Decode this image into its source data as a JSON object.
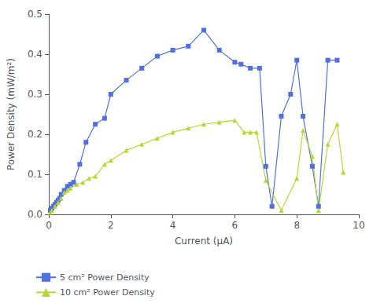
{
  "chart_data": {
    "type": "line",
    "xlabel": "Current (μA)",
    "ylabel": "Power Density (mW/m²)",
    "xlim": [
      0,
      10
    ],
    "ylim": [
      0,
      0.5
    ],
    "xticks": [
      0,
      2,
      4,
      6,
      8,
      10
    ],
    "yticks": [
      {
        "value": 0,
        "label": "0.0"
      },
      0.1,
      0.2,
      0.3,
      0.4,
      0.5
    ],
    "grid": false,
    "legend": "lower left",
    "series": [
      {
        "name": "5 cm² Power Density",
        "marker": "square",
        "x": [
          0.05,
          0.1,
          0.15,
          0.2,
          0.25,
          0.3,
          0.35,
          0.4,
          0.5,
          0.6,
          0.7,
          0.8,
          1.0,
          1.2,
          1.5,
          1.8,
          2.0,
          2.5,
          3.0,
          3.5,
          4.0,
          4.5,
          5.0,
          5.5,
          6.0,
          6.2,
          6.5,
          6.8,
          7.0,
          7.2,
          7.5,
          7.8,
          8.0,
          8.2,
          8.5,
          8.7,
          9.0,
          9.3
        ],
        "values": [
          0.01,
          0.015,
          0.02,
          0.025,
          0.03,
          0.035,
          0.04,
          0.05,
          0.06,
          0.07,
          0.075,
          0.08,
          0.125,
          0.18,
          0.225,
          0.24,
          0.3,
          0.335,
          0.365,
          0.395,
          0.41,
          0.42,
          0.46,
          0.41,
          0.38,
          0.375,
          0.365,
          0.365,
          0.12,
          0.02,
          0.245,
          0.3,
          0.385,
          0.245,
          0.12,
          0.02,
          0.385,
          0.385
        ]
      },
      {
        "name": "10 cm² Power Density",
        "marker": "triangle",
        "x": [
          0.05,
          0.1,
          0.2,
          0.3,
          0.4,
          0.5,
          0.6,
          0.7,
          0.9,
          1.1,
          1.3,
          1.5,
          1.8,
          2.0,
          2.5,
          3.0,
          3.5,
          4.0,
          4.5,
          5.0,
          5.5,
          6.0,
          6.3,
          6.5,
          6.7,
          7.0,
          7.5,
          8.0,
          8.2,
          8.5,
          8.7,
          9.0,
          9.3,
          9.5
        ],
        "values": [
          0.005,
          0.01,
          0.02,
          0.03,
          0.04,
          0.055,
          0.06,
          0.065,
          0.075,
          0.08,
          0.09,
          0.095,
          0.125,
          0.135,
          0.16,
          0.175,
          0.19,
          0.205,
          0.215,
          0.225,
          0.23,
          0.235,
          0.205,
          0.205,
          0.205,
          0.085,
          0.01,
          0.09,
          0.21,
          0.145,
          0.01,
          0.175,
          0.225,
          0.105
        ]
      }
    ]
  }
}
